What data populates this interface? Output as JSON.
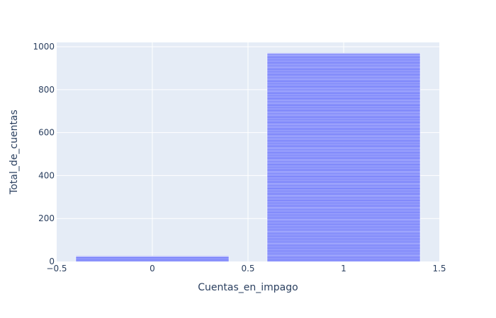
{
  "chart_data": {
    "type": "bar",
    "stacked_segments": true,
    "x": [
      0,
      1
    ],
    "values": [
      25,
      970
    ],
    "xlabel": "Cuentas_en_impago",
    "ylabel": "Total_de_cuentas",
    "xlim": [
      -0.5,
      1.5
    ],
    "ylim": [
      0,
      1020
    ],
    "xticks": [
      -0.5,
      0,
      0.5,
      1,
      1.5
    ],
    "xtick_labels": [
      "−0.5",
      "0",
      "0.5",
      "1",
      "1.5"
    ],
    "yticks": [
      0,
      200,
      400,
      600,
      800,
      1000
    ],
    "ytick_labels": [
      "0",
      "200",
      "400",
      "600",
      "800",
      "1000"
    ],
    "bar_width": 0.8,
    "bar_color": "#636efa",
    "bar_segment_outline": "#ffffff",
    "plot_background": "#e5ecf6",
    "grid": true,
    "legend": "none"
  }
}
